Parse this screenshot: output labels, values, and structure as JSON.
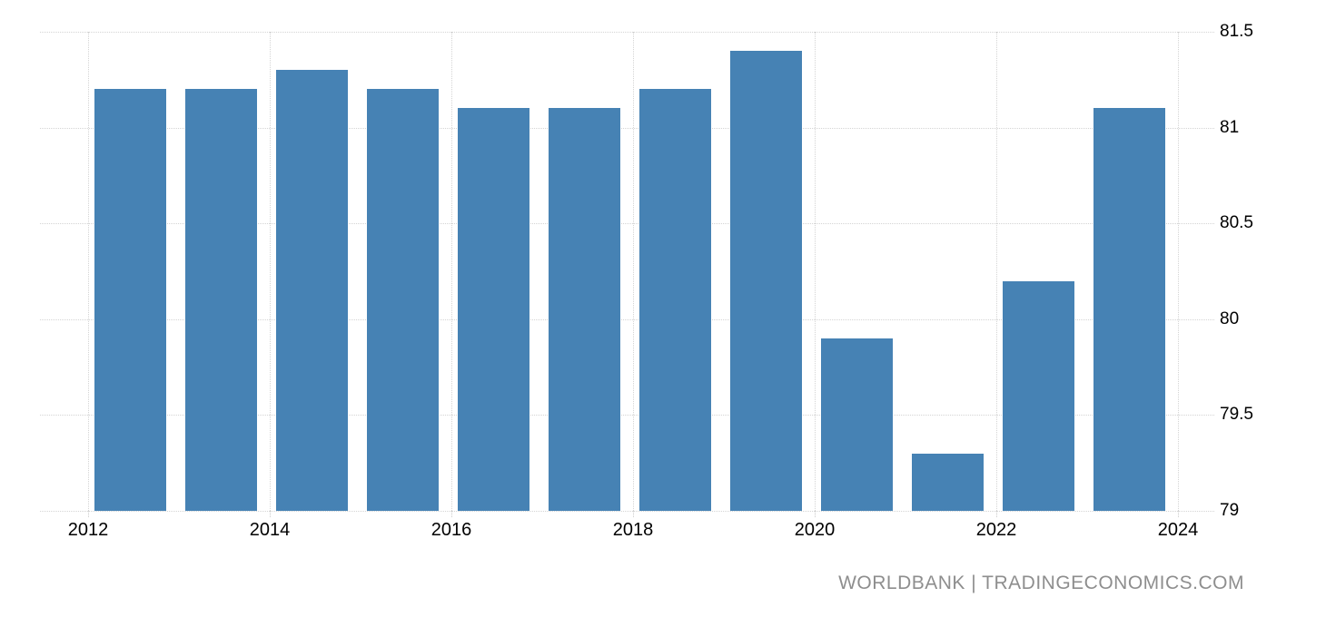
{
  "chart_data": {
    "type": "bar",
    "title": "",
    "xlabel": "",
    "ylabel": "",
    "categories": [
      2012,
      2013,
      2014,
      2015,
      2016,
      2017,
      2018,
      2019,
      2020,
      2021,
      2022,
      2023
    ],
    "values": [
      81.2,
      81.2,
      81.3,
      81.2,
      81.1,
      81.1,
      81.2,
      81.4,
      79.9,
      79.3,
      80.2,
      81.1
    ],
    "ylim": [
      79,
      81.5
    ],
    "yticks": [
      81.5,
      81,
      80.5,
      80,
      79.5,
      79
    ],
    "ytick_labels": [
      "81.5",
      "81",
      "80.5",
      "80",
      "79.5",
      "79"
    ],
    "xticks": [
      2012,
      2014,
      2016,
      2018,
      2020,
      2022,
      2024
    ],
    "xtick_labels": [
      "2012",
      "2014",
      "2016",
      "2018",
      "2020",
      "2022",
      "2024"
    ],
    "grid": "dotted",
    "legend": "none",
    "yaxis_side": "right"
  },
  "colors": {
    "bar": "#4682b4",
    "grid": "#d4d4d4",
    "axis_text": "#000000",
    "watermark": "#8e8e8e"
  },
  "watermark": {
    "text": "WORLDBANK | TRADINGECONOMICS.COM"
  }
}
